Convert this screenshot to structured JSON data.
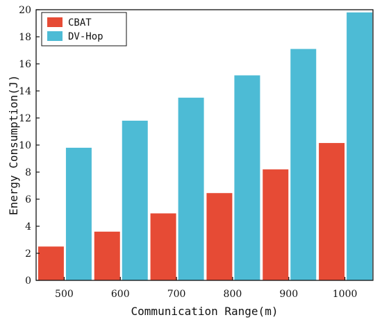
{
  "chart_data": {
    "type": "bar",
    "title": "",
    "xlabel": "Communication Range(m)",
    "ylabel": "Energy Consumption(J)",
    "categories": [
      "500",
      "600",
      "700",
      "800",
      "900",
      "1000"
    ],
    "series": [
      {
        "name": "CBAT",
        "values": [
          2.5,
          3.6,
          4.95,
          6.45,
          8.2,
          10.15
        ],
        "color": "#e64b35"
      },
      {
        "name": "DV-Hop",
        "values": [
          9.8,
          11.8,
          13.5,
          15.15,
          17.1,
          19.8
        ],
        "color": "#4dbbd5"
      }
    ],
    "ylim": [
      0,
      20
    ],
    "yticks": [
      "0",
      "2",
      "4",
      "6",
      "8",
      "10",
      "12",
      "14",
      "16",
      "18",
      "20"
    ],
    "grid": false,
    "legend_position": "top-left"
  }
}
